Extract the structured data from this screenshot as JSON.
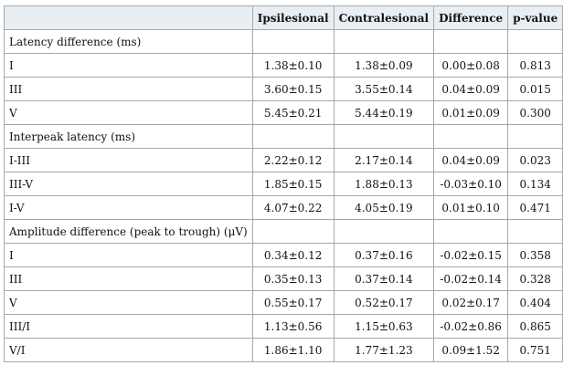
{
  "columns": [
    "",
    "Ipsilesional",
    "Contralesional",
    "Difference",
    "p-value"
  ],
  "sections": [
    {
      "title": "Latency difference (ms)",
      "rows": [
        {
          "label": "I",
          "ipsi": "1.38±0.10",
          "contra": "1.38±0.09",
          "diff": "0.00±0.08",
          "p": "0.813"
        },
        {
          "label": "III",
          "ipsi": "3.60±0.15",
          "contra": "3.55±0.14",
          "diff": "0.04±0.09",
          "p": "0.015"
        },
        {
          "label": "V",
          "ipsi": "5.45±0.21",
          "contra": "5.44±0.19",
          "diff": "0.01±0.09",
          "p": "0.300"
        }
      ]
    },
    {
      "title": "Interpeak latency (ms)",
      "rows": [
        {
          "label": "I-III",
          "ipsi": "2.22±0.12",
          "contra": "2.17±0.14",
          "diff": "0.04±0.09",
          "p": "0.023"
        },
        {
          "label": "III-V",
          "ipsi": "1.85±0.15",
          "contra": "1.88±0.13",
          "diff": "-0.03±0.10",
          "p": "0.134"
        },
        {
          "label": "I-V",
          "ipsi": "4.07±0.22",
          "contra": "4.05±0.19",
          "diff": "0.01±0.10",
          "p": "0.471"
        }
      ]
    },
    {
      "title": "Amplitude difference (peak to trough) (μV)",
      "rows": [
        {
          "label": "I",
          "ipsi": "0.34±0.12",
          "contra": "0.37±0.16",
          "diff": "-0.02±0.15",
          "p": "0.358"
        },
        {
          "label": "III",
          "ipsi": "0.35±0.13",
          "contra": "0.37±0.14",
          "diff": "-0.02±0.14",
          "p": "0.328"
        },
        {
          "label": "V",
          "ipsi": "0.55±0.17",
          "contra": "0.52±0.17",
          "diff": "0.02±0.17",
          "p": "0.404"
        },
        {
          "label": "III/I",
          "ipsi": "1.13±0.56",
          "contra": "1.15±0.63",
          "diff": "-0.02±0.86",
          "p": "0.865"
        },
        {
          "label": "V/I",
          "ipsi": "1.86±1.10",
          "contra": "1.77±1.23",
          "diff": "0.09±1.52",
          "p": "0.751"
        }
      ]
    }
  ]
}
